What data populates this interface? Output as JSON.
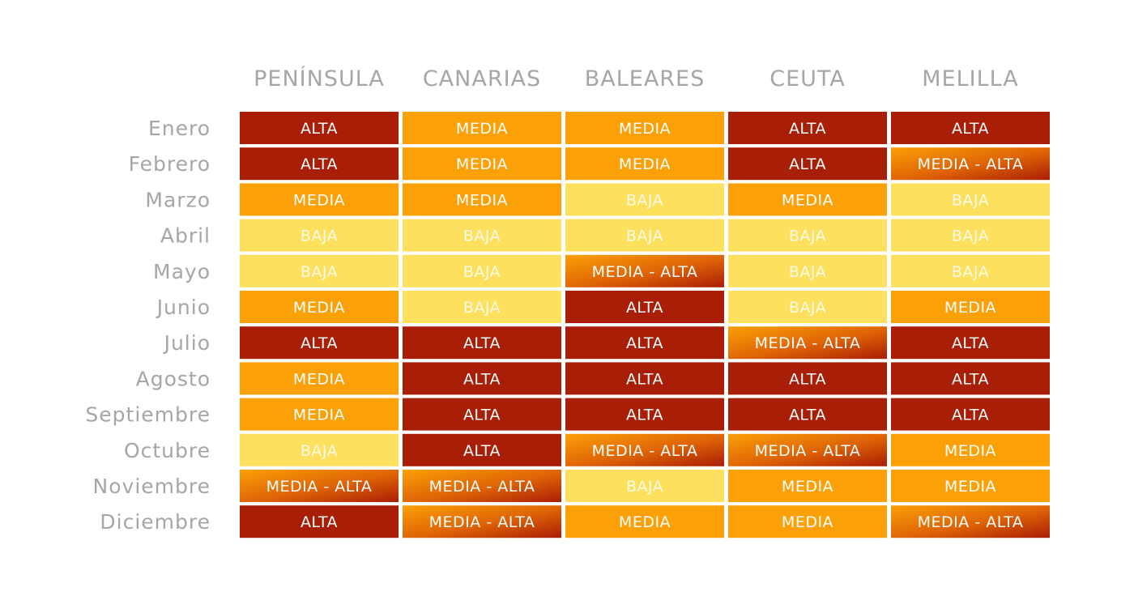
{
  "chart_data": {
    "type": "heatmap",
    "columns": [
      "PENÍNSULA",
      "CANARIAS",
      "BALEARES",
      "CEUTA",
      "MELILLA"
    ],
    "rows": [
      "Enero",
      "Febrero",
      "Marzo",
      "Abril",
      "Mayo",
      "Junio",
      "Julio",
      "Agosto",
      "Septiembre",
      "Octubre",
      "Noviembre",
      "Diciembre"
    ],
    "values": [
      [
        "ALTA",
        "MEDIA",
        "MEDIA",
        "ALTA",
        "ALTA"
      ],
      [
        "ALTA",
        "MEDIA",
        "MEDIA",
        "ALTA",
        "MEDIA - ALTA"
      ],
      [
        "MEDIA",
        "MEDIA",
        "BAJA",
        "MEDIA",
        "BAJA"
      ],
      [
        "BAJA",
        "BAJA",
        "BAJA",
        "BAJA",
        "BAJA"
      ],
      [
        "BAJA",
        "BAJA",
        "MEDIA - ALTA",
        "BAJA",
        "BAJA"
      ],
      [
        "MEDIA",
        "BAJA",
        "ALTA",
        "BAJA",
        "MEDIA"
      ],
      [
        "ALTA",
        "ALTA",
        "ALTA",
        "MEDIA - ALTA",
        "ALTA"
      ],
      [
        "MEDIA",
        "ALTA",
        "ALTA",
        "ALTA",
        "ALTA"
      ],
      [
        "MEDIA",
        "ALTA",
        "ALTA",
        "ALTA",
        "ALTA"
      ],
      [
        "BAJA",
        "ALTA",
        "MEDIA - ALTA",
        "MEDIA - ALTA",
        "MEDIA"
      ],
      [
        "MEDIA - ALTA",
        "MEDIA - ALTA",
        "BAJA",
        "MEDIA",
        "MEDIA"
      ],
      [
        "ALTA",
        "MEDIA - ALTA",
        "MEDIA",
        "MEDIA",
        "MEDIA - ALTA"
      ]
    ],
    "level_colors": {
      "ALTA": "#a91e06",
      "MEDIA": "#fba007",
      "BAJA": "#fde05e",
      "MEDIA - ALTA": "#e46a06"
    },
    "text_colors": {
      "ALTA": "#ffffff",
      "MEDIA": "#ffffff",
      "BAJA": "#fdfae8",
      "MEDIA - ALTA": "#ffffff"
    },
    "legend": "none",
    "grid": false
  }
}
